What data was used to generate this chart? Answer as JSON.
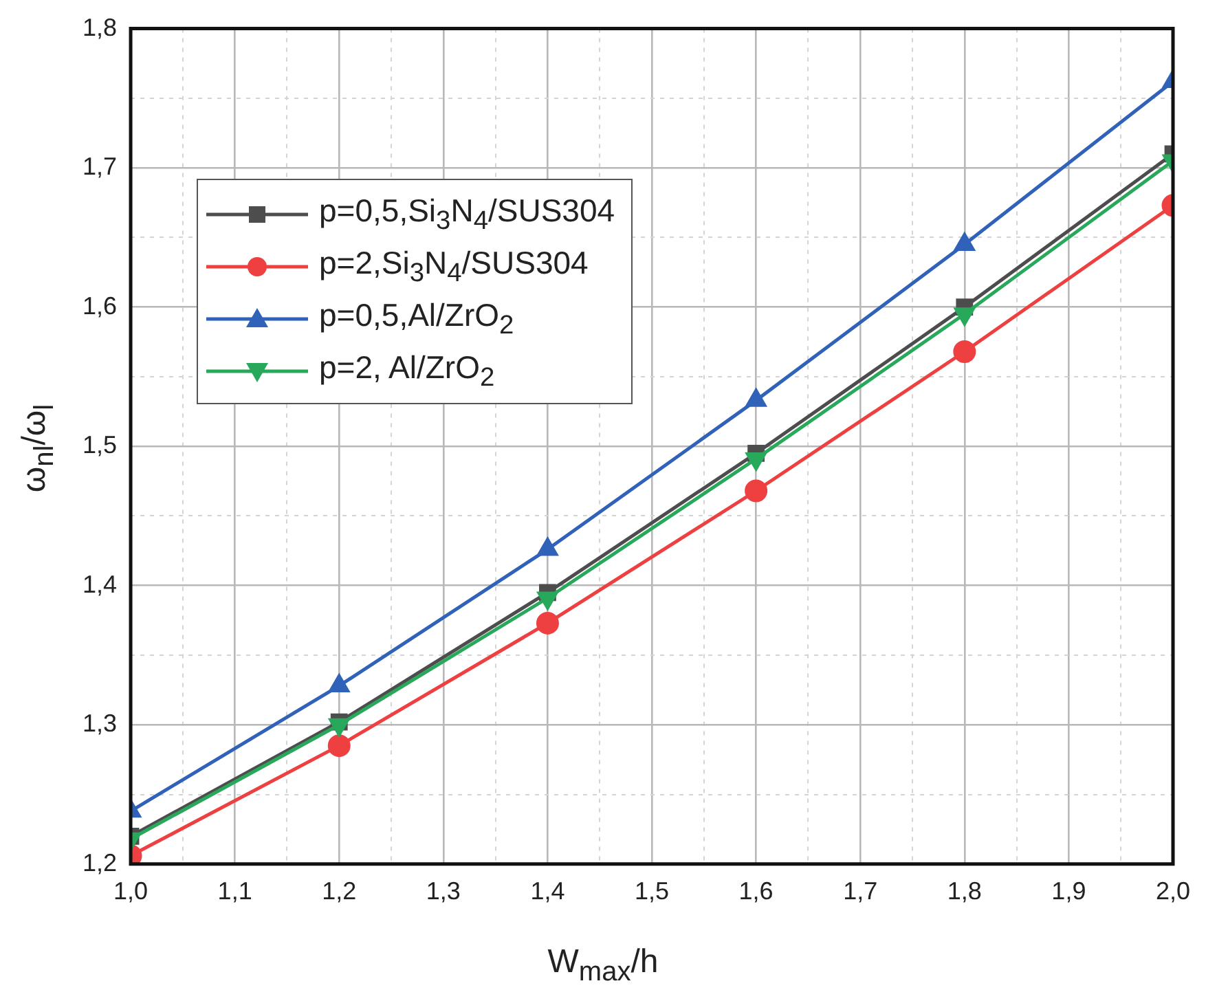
{
  "chart_data": {
    "type": "line",
    "xlabel": "W$_{max}$/h",
    "ylabel": "ω$_{nl}$/ω$_{l}$",
    "x": [
      1.0,
      1.2,
      1.4,
      1.6,
      1.8,
      2.0
    ],
    "series": [
      {
        "name": "p=0,5,Si$_{3}$N$_{4}$/SUS304",
        "color": "#4d4d4d",
        "marker": "square",
        "values": [
          1.22,
          1.302,
          1.395,
          1.495,
          1.6,
          1.71
        ]
      },
      {
        "name": "p=2,Si$_{3}$N$_{4}$/SUS304",
        "color": "#ee4040",
        "marker": "circle",
        "values": [
          1.206,
          1.285,
          1.373,
          1.468,
          1.568,
          1.673
        ]
      },
      {
        "name": "p=0,5,Al/ZrO$_{2}$",
        "color": "#2f62b8",
        "marker": "triangle",
        "values": [
          1.238,
          1.328,
          1.426,
          1.533,
          1.645,
          1.762
        ]
      },
      {
        "name": "p=2, Al/ZrO$_{2}$",
        "color": "#28a85a",
        "marker": "triangle-down",
        "values": [
          1.218,
          1.3,
          1.391,
          1.491,
          1.595,
          1.705
        ]
      }
    ],
    "xlim": [
      1.0,
      2.0
    ],
    "xticks": [
      {
        "value": 1.0,
        "label": "1,0"
      },
      {
        "value": 1.05,
        "label": null
      },
      {
        "value": 1.1,
        "label": "1,1"
      },
      {
        "value": 1.15,
        "label": null
      },
      {
        "value": 1.2,
        "label": "1,2"
      },
      {
        "value": 1.25,
        "label": null
      },
      {
        "value": 1.3,
        "label": "1,3"
      },
      {
        "value": 1.35,
        "label": null
      },
      {
        "value": 1.4,
        "label": "1,4"
      },
      {
        "value": 1.45,
        "label": null
      },
      {
        "value": 1.5,
        "label": "1,5"
      },
      {
        "value": 1.55,
        "label": null
      },
      {
        "value": 1.6,
        "label": "1,6"
      },
      {
        "value": 1.65,
        "label": null
      },
      {
        "value": 1.7,
        "label": "1,7"
      },
      {
        "value": 1.75,
        "label": null
      },
      {
        "value": 1.8,
        "label": "1,8"
      },
      {
        "value": 1.85,
        "label": null
      },
      {
        "value": 1.9,
        "label": "1,9"
      },
      {
        "value": 1.95,
        "label": null
      },
      {
        "value": 2.0,
        "label": "2,0"
      }
    ],
    "ylim": [
      1.2,
      1.8
    ],
    "yticks": [
      {
        "value": 1.2,
        "label": "1,2"
      },
      {
        "value": 1.25,
        "label": null
      },
      {
        "value": 1.3,
        "label": "1,3"
      },
      {
        "value": 1.35,
        "label": null
      },
      {
        "value": 1.4,
        "label": "1,4"
      },
      {
        "value": 1.45,
        "label": null
      },
      {
        "value": 1.5,
        "label": "1,5"
      },
      {
        "value": 1.55,
        "label": null
      },
      {
        "value": 1.6,
        "label": "1,6"
      },
      {
        "value": 1.65,
        "label": null
      },
      {
        "value": 1.7,
        "label": "1,7"
      },
      {
        "value": 1.75,
        "label": null
      },
      {
        "value": 1.8,
        "label": "1,8"
      }
    ],
    "grid": true,
    "legend": "top left",
    "line_style": "solid"
  }
}
